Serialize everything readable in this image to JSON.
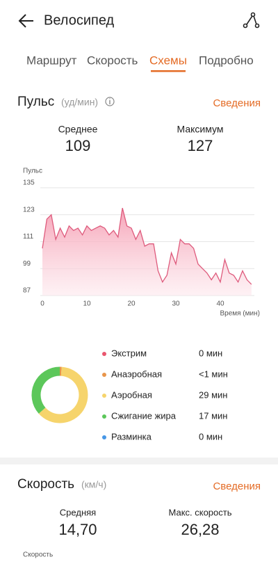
{
  "header": {
    "title": "Велосипед"
  },
  "tabs": [
    "Маршрут",
    "Скорость",
    "Схемы",
    "Подробно"
  ],
  "active_tab": 2,
  "pulse": {
    "title": "Пульс",
    "unit": "(уд/мин)",
    "details": "Сведения",
    "stats": [
      {
        "label": "Среднее",
        "value": 109
      },
      {
        "label": "Максимум",
        "value": 127
      }
    ]
  },
  "speed": {
    "title": "Скорость",
    "unit": "(км/ч)",
    "details": "Сведения",
    "stats": [
      {
        "label": "Средняя",
        "value": "14,70"
      },
      {
        "label": "Макс. скорость",
        "value": "26,28"
      }
    ],
    "axis_label": "Скорость"
  },
  "chart_data": [
    {
      "type": "line",
      "y_label": "Пульс",
      "x_label": "Время (мин)",
      "color": "#de5a7c",
      "fill": "#f7a9bb",
      "grid": true,
      "x": [
        0,
        1,
        2,
        3,
        4,
        5,
        6,
        7,
        8,
        9,
        10,
        11,
        12,
        13,
        14,
        15,
        16,
        17,
        18,
        19,
        20,
        21,
        22,
        23,
        24,
        25,
        26,
        27,
        28,
        29,
        30,
        31,
        32,
        33,
        34,
        35,
        36,
        37,
        38,
        39,
        40,
        41,
        42,
        43,
        44,
        45,
        46,
        47
      ],
      "series": [
        {
          "name": "Пульс",
          "values": [
            108,
            121,
            123,
            112,
            117,
            113,
            118,
            116,
            117,
            114,
            118,
            116,
            117,
            118,
            117,
            114,
            116,
            113,
            126,
            118,
            117,
            112,
            116,
            109,
            110,
            110,
            98,
            93,
            96,
            106,
            101,
            112,
            110,
            110,
            108,
            101,
            99,
            97,
            94,
            97,
            93,
            103,
            97,
            96,
            93,
            98,
            94,
            92
          ]
        }
      ],
      "xlim": [
        0,
        48
      ],
      "xticks": [
        0,
        10,
        20,
        30,
        40
      ],
      "ylim": [
        87,
        135
      ],
      "yticks": [
        87,
        99,
        111,
        123,
        135
      ]
    },
    {
      "type": "donut",
      "categories": [
        "Экстрим",
        "Анаэробная",
        "Аэробная",
        "Сжигание жира",
        "Разминка"
      ],
      "values": [
        0,
        0.5,
        29,
        17,
        0
      ],
      "value_labels": [
        "0 мин",
        "<1 мин",
        "29 мин",
        "17 мин",
        "0 мин"
      ],
      "colors": [
        "#e9566e",
        "#e8954a",
        "#f6d46c",
        "#5cc75a",
        "#4797e6"
      ]
    }
  ]
}
